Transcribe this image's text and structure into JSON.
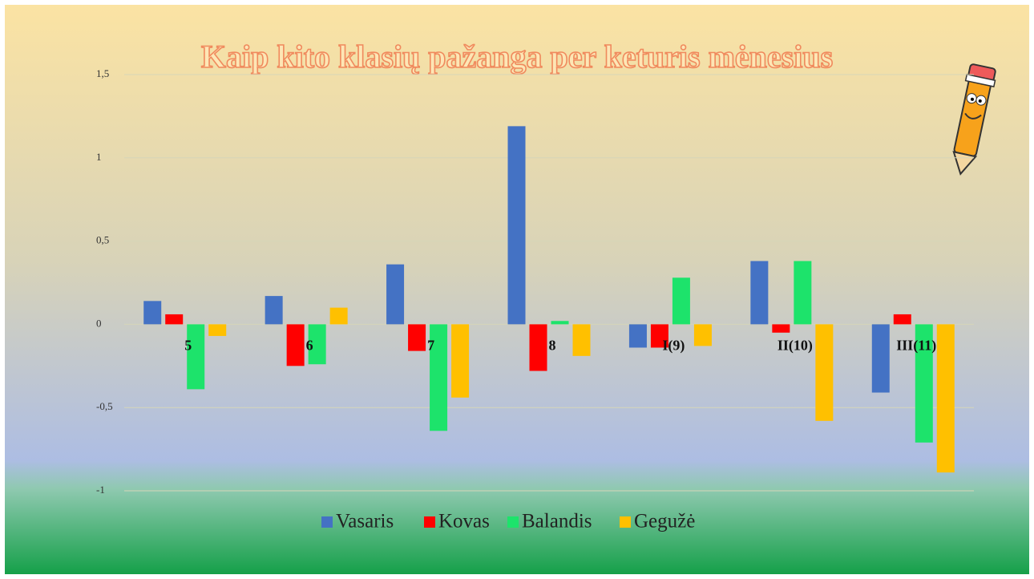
{
  "chart_data": {
    "type": "bar",
    "title": "Kaip kito klasių pažanga per keturis mėnesius",
    "categories": [
      "5",
      "6",
      "7",
      "8",
      "I(9)",
      "II(10)",
      "III(11)"
    ],
    "series": [
      {
        "name": "Vasaris",
        "color": "#4472c4",
        "values": [
          0.14,
          0.17,
          0.36,
          1.19,
          -0.14,
          0.38,
          -0.41
        ]
      },
      {
        "name": "Kovas",
        "color": "#ff0000",
        "values": [
          0.06,
          -0.25,
          -0.16,
          -0.28,
          -0.14,
          -0.05,
          0.06
        ]
      },
      {
        "name": "Balandis",
        "color": "#1de36b",
        "values": [
          -0.39,
          -0.24,
          -0.64,
          0.02,
          0.28,
          0.38,
          -0.71
        ]
      },
      {
        "name": "Gegužė",
        "color": "#ffc000",
        "values": [
          -0.07,
          0.1,
          -0.44,
          -0.19,
          -0.13,
          -0.58,
          -0.89
        ]
      }
    ],
    "ylim": [
      -1,
      1.5
    ],
    "yticks": [
      -1,
      {
        "value": -0.5,
        "label": "-0,5"
      },
      0,
      {
        "value": 0.5,
        "label": "0,5"
      },
      1,
      {
        "value": 1.5,
        "label": "1,5"
      }
    ],
    "grid": true,
    "legend": "bottom"
  }
}
